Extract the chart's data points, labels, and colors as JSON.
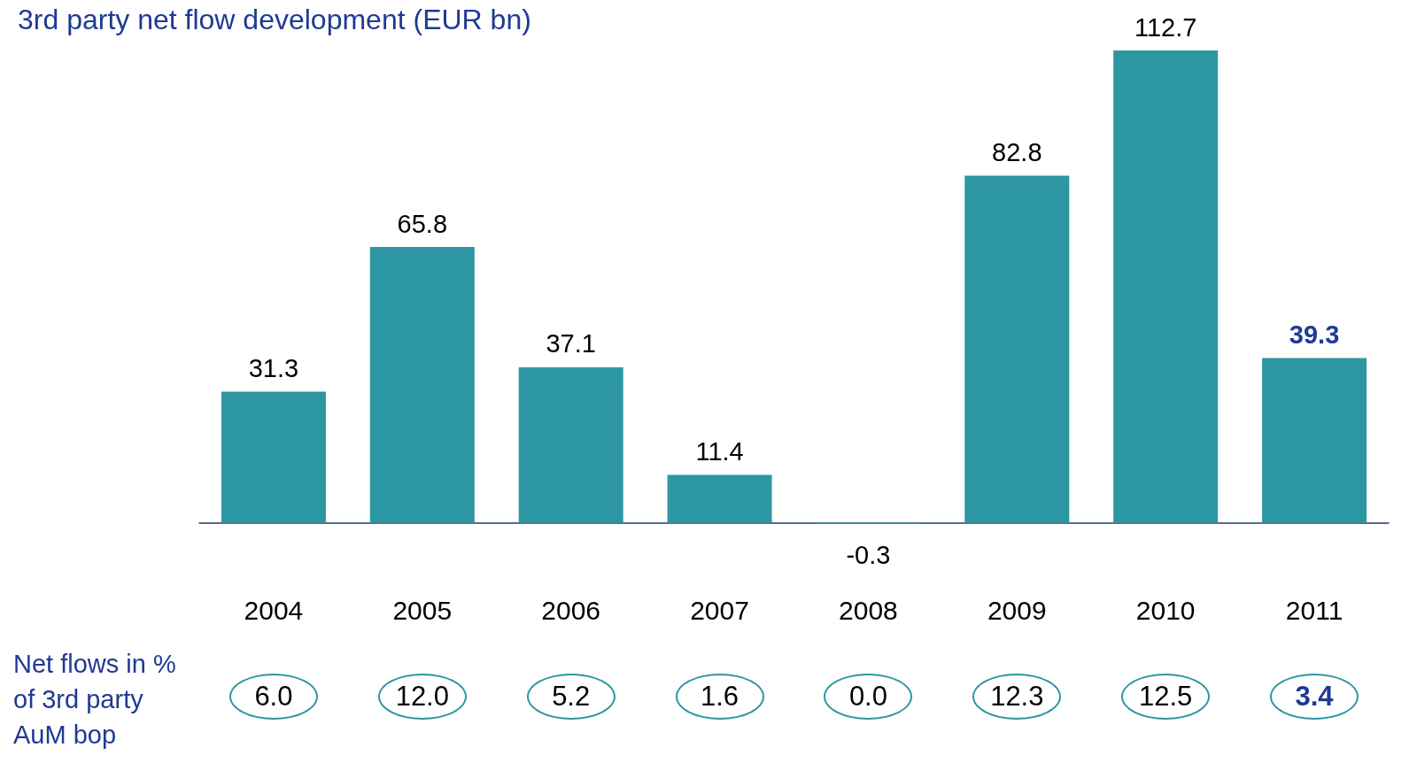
{
  "chart_data": {
    "type": "bar",
    "title": "3rd party net flow development (EUR bn)",
    "categories": [
      "2004",
      "2005",
      "2006",
      "2007",
      "2008",
      "2009",
      "2010",
      "2011"
    ],
    "values": [
      31.3,
      65.8,
      37.1,
      11.4,
      -0.3,
      82.8,
      112.7,
      39.3
    ],
    "color": "#2c97a2",
    "data_labels": true,
    "grid": false,
    "annotations": [
      "Net flows in % of 3rd party AuM bop",
      "6.0",
      "12.0",
      "5.2",
      "1.6",
      "0.0",
      "12.3",
      "12.5",
      "3.4"
    ]
  }
}
